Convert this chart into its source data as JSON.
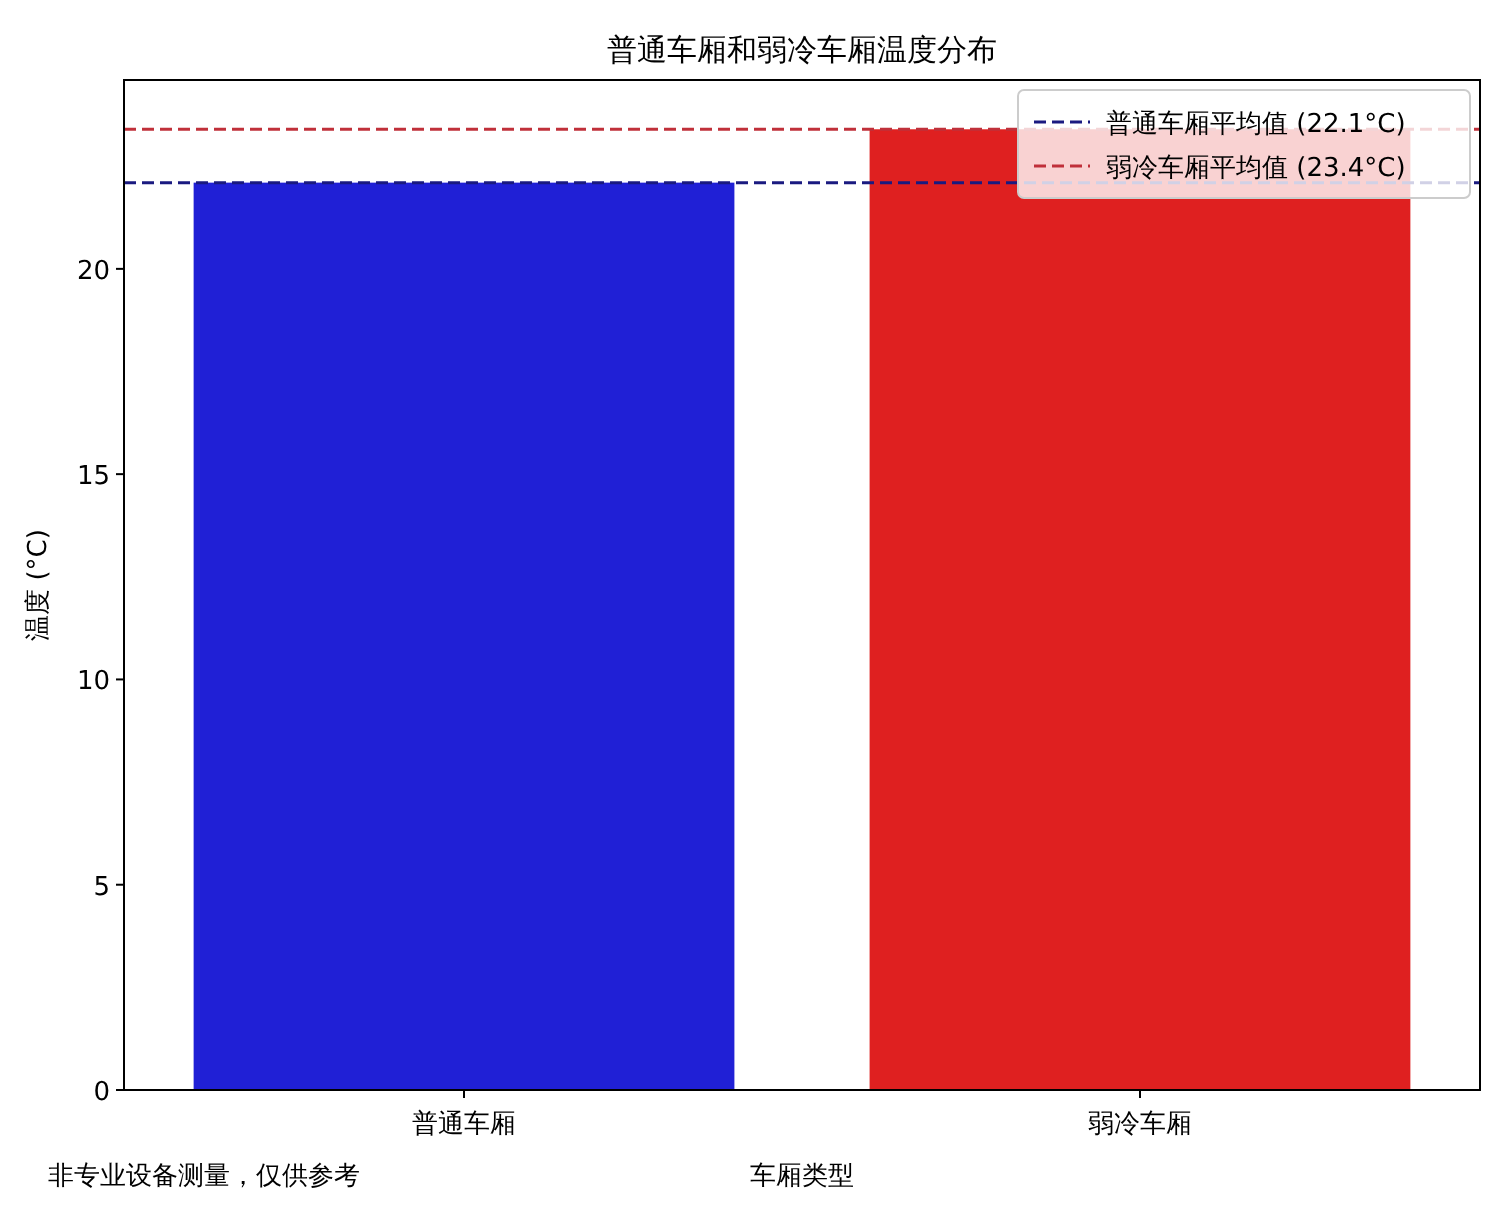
{
  "chart_data": {
    "type": "bar",
    "title": "普通车厢和弱冷车厢温度分布",
    "xlabel": "车厢类型",
    "ylabel": "温度 (°C)",
    "categories": [
      "普通车厢",
      "弱冷车厢"
    ],
    "values": [
      22.1,
      23.4
    ],
    "colors": [
      "#2020d6",
      "#df2020"
    ],
    "ylim": [
      0,
      24.6
    ],
    "yticks": [
      0,
      5,
      10,
      15,
      20
    ],
    "ref_lines": [
      {
        "axis": "y",
        "value": 22.1,
        "label": "普通车厢平均值 (22.1°C)",
        "color": "#1a1a80",
        "line_style": "dashed"
      },
      {
        "axis": "y",
        "value": 23.4,
        "label": "弱冷车厢平均值 (23.4°C)",
        "color": "#c0303a",
        "line_style": "dashed"
      }
    ],
    "legend": "top right",
    "grid": false,
    "annotations": [
      "非专业设备测量，仅供参考"
    ]
  }
}
